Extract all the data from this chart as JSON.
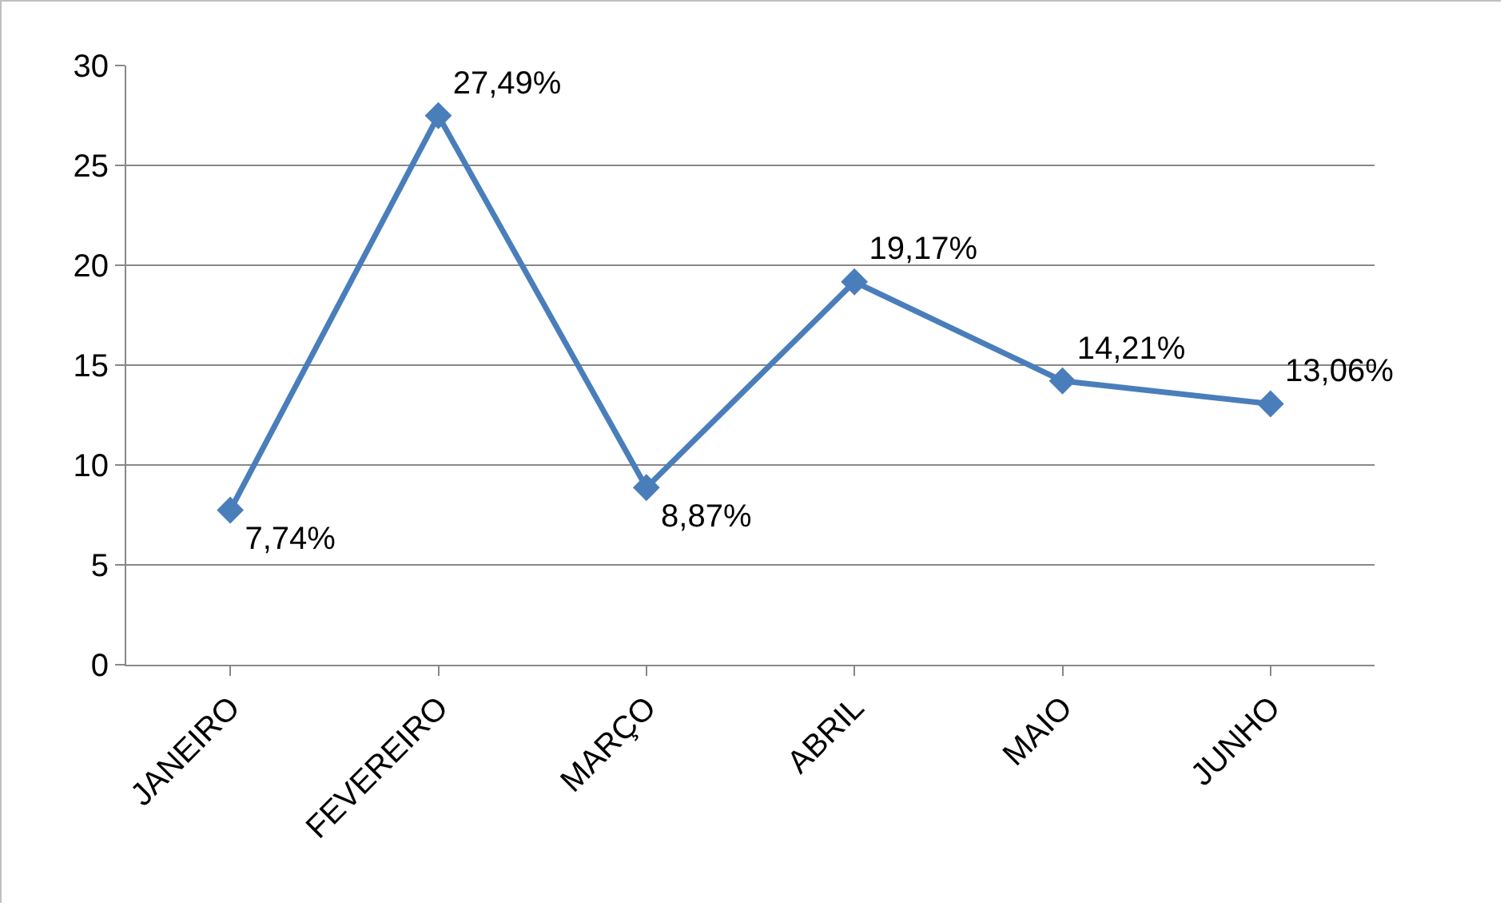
{
  "chart_data": {
    "type": "line",
    "categories": [
      "JANEIRO",
      "FEVEREIRO",
      "MARÇO",
      "ABRIL",
      "MAIO",
      "JUNHO"
    ],
    "series": [
      {
        "color": "#4a7ebb",
        "values": [
          7.74,
          27.49,
          8.87,
          19.17,
          14.21,
          13.06
        ],
        "value_labels": [
          "7,74%",
          "27,49%",
          "8,87%",
          "19,17%",
          "14,21%",
          "13,06%"
        ]
      }
    ],
    "ylim": [
      0,
      30
    ],
    "yticks": [
      0,
      5,
      10,
      15,
      20,
      25,
      30
    ],
    "grid": "y",
    "marker": "diamond",
    "line_style": "solid"
  }
}
